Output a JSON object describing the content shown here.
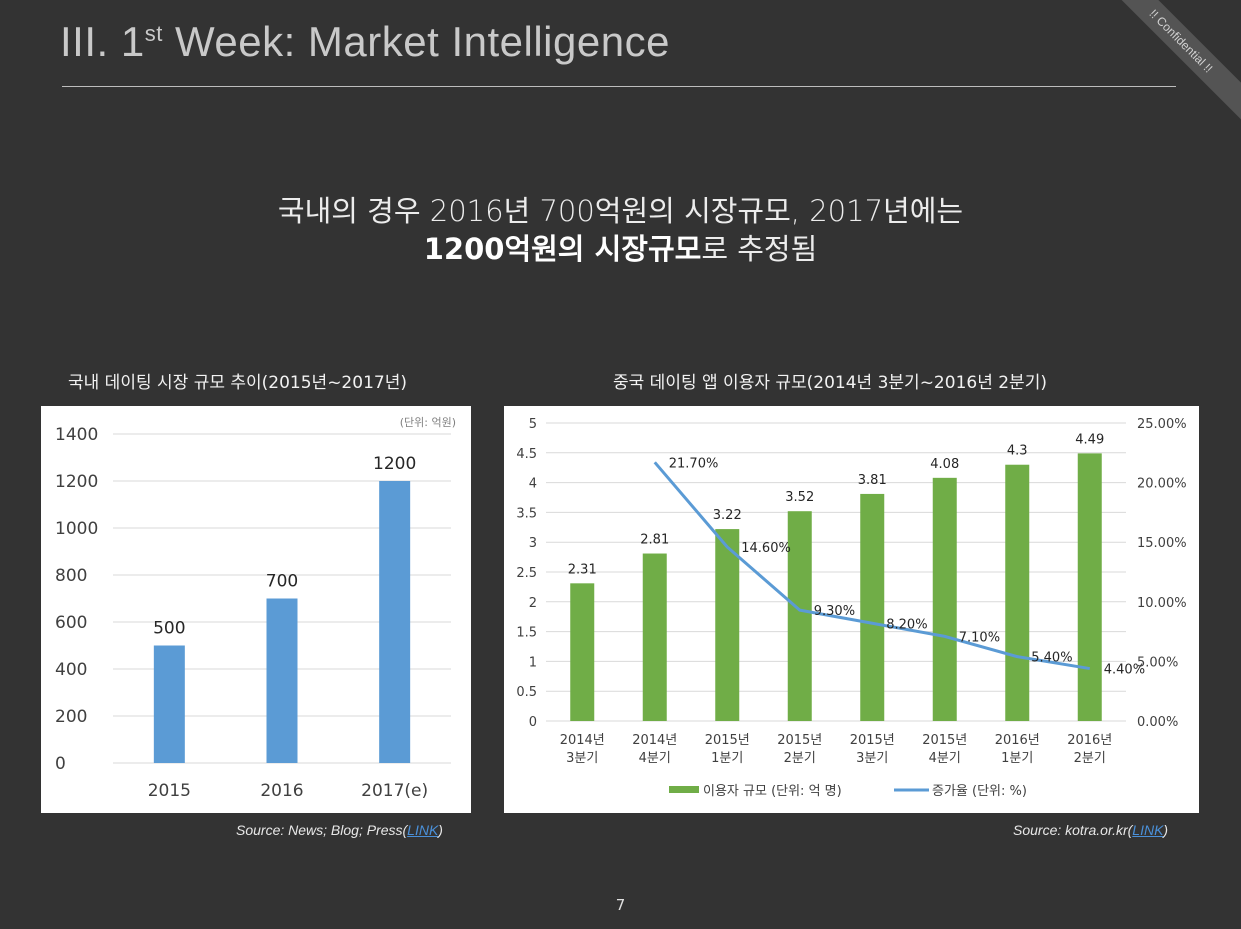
{
  "slide": {
    "title_prefix": "III. 1",
    "title_sup": "st",
    "title_suffix": " Week: Market Intelligence",
    "confidential": "!! Confidential !!",
    "headline_line1": "국내의 경우 2016년 700억원의 시장규모, 2017년에는",
    "headline_bold": "1200억원의 시장규모",
    "headline_rest": "로 추정됨",
    "page_number": "7"
  },
  "left": {
    "title": "국내 데이팅 시장 규모 추이(2015년~2017년)",
    "unit": "(단위: 억원)",
    "source_text": "Source: News; Blog; Press(",
    "source_link": "LINK",
    "source_close": ")"
  },
  "right": {
    "title": "중국 데이팅 앱 이용자 규모(2014년 3분기~2016년 2분기)",
    "source_text": "Source: kotra.or.kr(",
    "source_link": "LINK",
    "source_close": ")"
  },
  "chart_data": [
    {
      "type": "bar",
      "categories": [
        "2015",
        "2016",
        "2017(e)"
      ],
      "values": [
        500,
        700,
        1200
      ],
      "data_labels": [
        "500",
        "700",
        "1200"
      ],
      "ylim": [
        0,
        1400
      ],
      "yticks": [
        "0",
        "200",
        "400",
        "600",
        "800",
        "1000",
        "1200",
        "1400"
      ],
      "grid": true,
      "color": "#5b9bd5"
    },
    {
      "type": "bar",
      "categories": [
        "2014년 3분기",
        "2014년 4분기",
        "2015년 1분기",
        "2015년 2분기",
        "2015년 3분기",
        "2015년 4분기",
        "2016년 1분기",
        "2016년 2분기"
      ],
      "category_lines": [
        [
          "2014년",
          "3분기"
        ],
        [
          "2014년",
          "4분기"
        ],
        [
          "2015년",
          "1분기"
        ],
        [
          "2015년",
          "2분기"
        ],
        [
          "2015년",
          "3분기"
        ],
        [
          "2015년",
          "4분기"
        ],
        [
          "2016년",
          "1분기"
        ],
        [
          "2016년",
          "2분기"
        ]
      ],
      "series": [
        {
          "name": "이용자 규모 (단위: 억 명)",
          "type": "bar",
          "axis": "left",
          "color": "#70ad47",
          "values": [
            2.31,
            2.81,
            3.22,
            3.52,
            3.81,
            4.08,
            4.3,
            4.49
          ],
          "labels": [
            "2.31",
            "2.81",
            "3.22",
            "3.52",
            "3.81",
            "4.08",
            "4.3",
            "4.49"
          ]
        },
        {
          "name": "증가율 (단위: %)",
          "type": "line",
          "axis": "right",
          "color": "#5b9bd5",
          "values": [
            null,
            21.7,
            14.6,
            9.3,
            8.2,
            7.1,
            5.4,
            4.4
          ],
          "labels": [
            null,
            "21.70%",
            "14.60%",
            "9.30%",
            "8.20%",
            "7.10%",
            "5.40%",
            "4.40%"
          ]
        }
      ],
      "ylim_left": [
        0,
        5
      ],
      "yticks_left": [
        "0",
        "0.5",
        "1",
        "1.5",
        "2",
        "2.5",
        "3",
        "3.5",
        "4",
        "4.5",
        "5"
      ],
      "ylim_right": [
        0,
        25
      ],
      "yticks_right": [
        "0.00%",
        "5.00%",
        "10.00%",
        "15.00%",
        "20.00%",
        "25.00%"
      ],
      "legend_position": "bottom",
      "grid": true
    }
  ]
}
